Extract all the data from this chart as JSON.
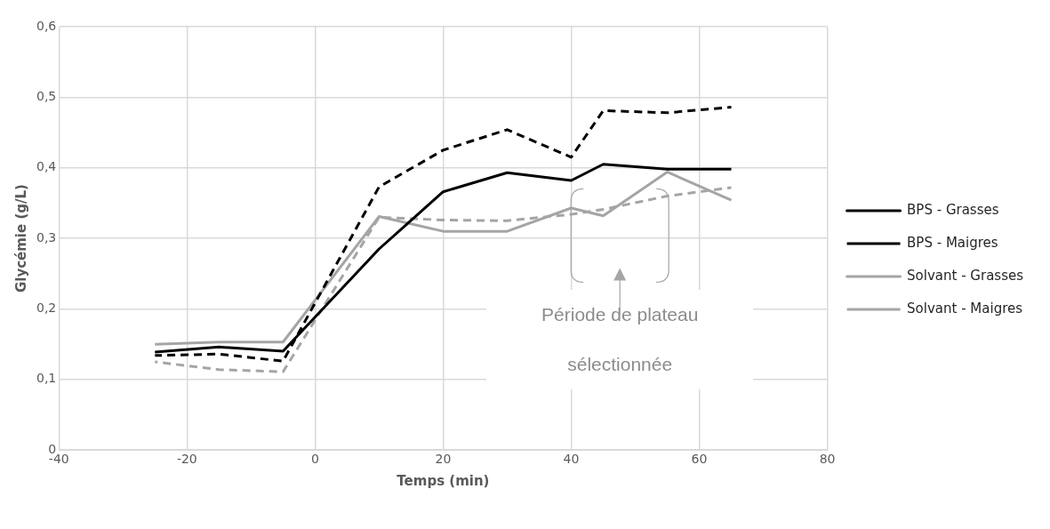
{
  "chart_data": {
    "type": "line",
    "xlabel": "Temps (min)",
    "ylabel": "Glycémie (g/L)",
    "x": [
      -25,
      -15,
      -5,
      10,
      20,
      30,
      40,
      45,
      55,
      65
    ],
    "series": [
      {
        "name": "BPS - Grasses",
        "color": "#000000",
        "line_style": "solid",
        "values": [
          0.139,
          0.146,
          0.14,
          0.285,
          0.366,
          0.393,
          0.382,
          0.405,
          0.398,
          0.398
        ]
      },
      {
        "name": "BPS - Maigres",
        "color": "#000000",
        "line_style": "dashed",
        "values": [
          0.134,
          0.136,
          0.126,
          0.373,
          0.425,
          0.454,
          0.415,
          0.481,
          0.478,
          0.486
        ]
      },
      {
        "name": "Solvant - Grasses",
        "color": "#a5a5a5",
        "line_style": "solid",
        "values": [
          0.15,
          0.153,
          0.153,
          0.331,
          0.31,
          0.31,
          0.343,
          0.332,
          0.394,
          0.354
        ]
      },
      {
        "name": "Solvant - Maigres",
        "color": "#a5a5a5",
        "line_style": "dashed",
        "values": [
          0.125,
          0.114,
          0.111,
          0.33,
          0.326,
          0.325,
          0.334,
          0.341,
          0.36,
          0.372
        ]
      }
    ],
    "xlim": [
      -40,
      80
    ],
    "xticks": [
      -40,
      -20,
      0,
      20,
      40,
      60,
      80
    ],
    "ylim": [
      0,
      0.6
    ],
    "yticks": [
      {
        "value": 0,
        "label": "0"
      },
      {
        "value": 0.1,
        "label": "0,1"
      },
      {
        "value": 0.2,
        "label": "0,2"
      },
      {
        "value": 0.3,
        "label": "0,3"
      },
      {
        "value": 0.4,
        "label": "0,4"
      },
      {
        "value": 0.5,
        "label": "0,5"
      },
      {
        "value": 0.6,
        "label": "0,6"
      }
    ],
    "grid": true,
    "legend": "right",
    "marker": "none",
    "annotations": [
      "Période de plateau sélectionnée"
    ]
  }
}
